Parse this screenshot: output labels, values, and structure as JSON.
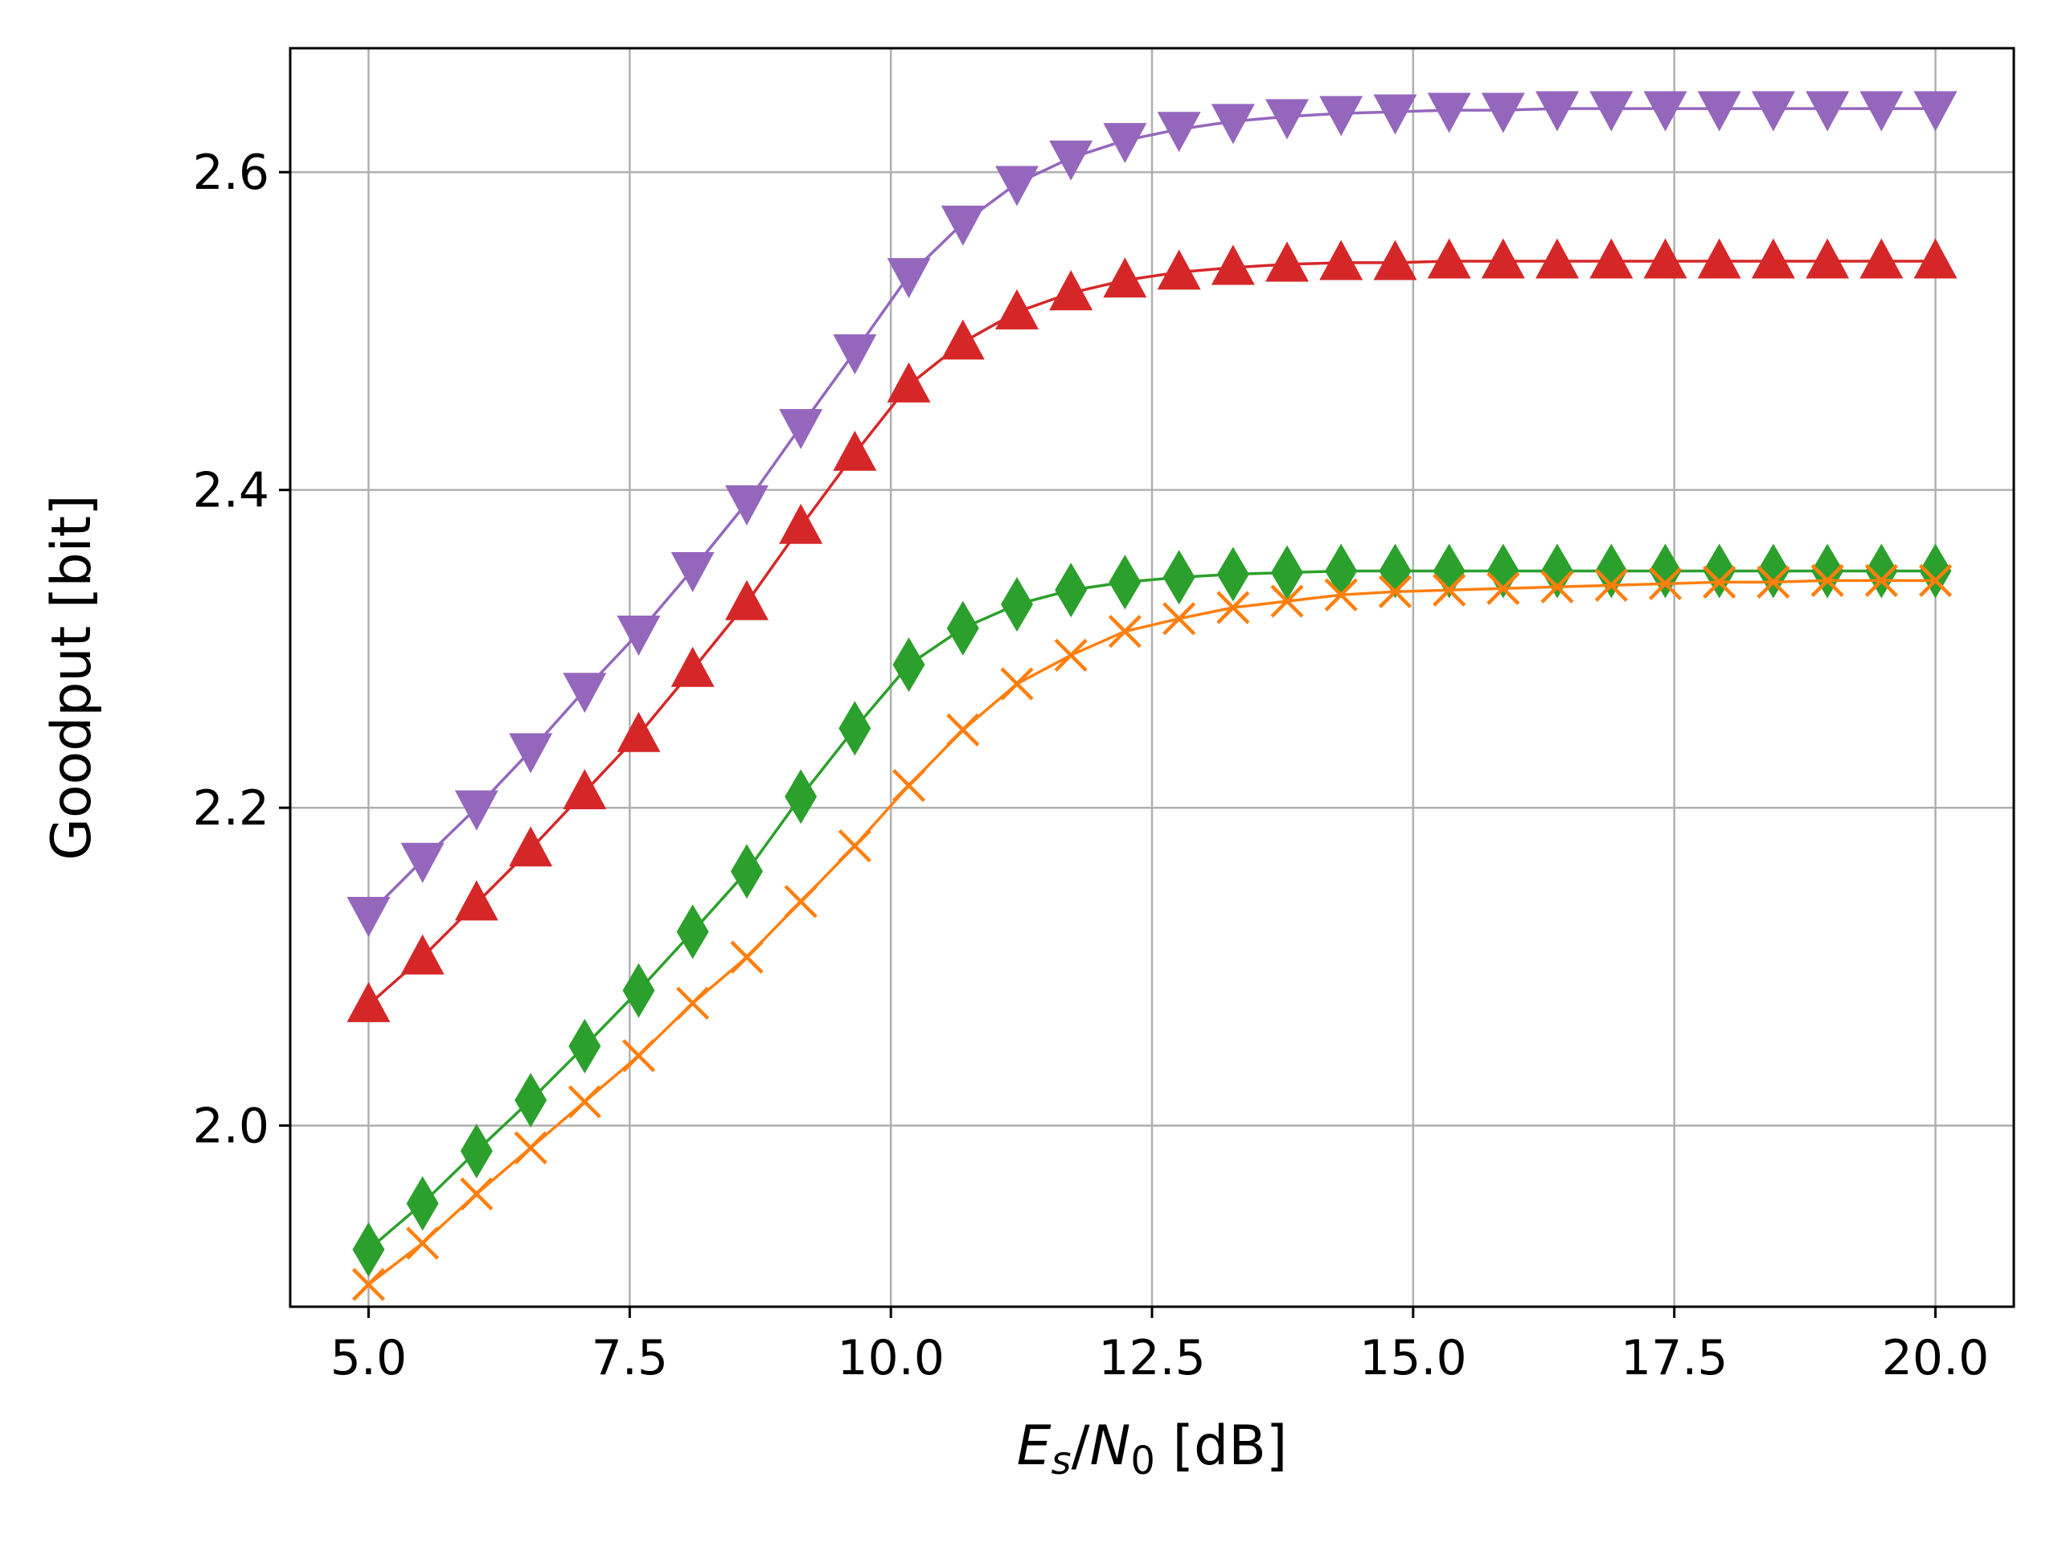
{
  "chart_data": {
    "type": "line",
    "title": "",
    "xlabel": {
      "E": "E",
      "s": "s",
      "slash": "/",
      "N": "N",
      "zero": "0",
      "unit": " [dB]"
    },
    "ylabel": "Goodput [bit]",
    "xlim": [
      4.25,
      20.75
    ],
    "ylim": [
      1.886,
      2.678
    ],
    "x_ticks": [
      5.0,
      7.5,
      10.0,
      12.5,
      15.0,
      17.5,
      20.0
    ],
    "x_tick_labels": [
      "5.0",
      "7.5",
      "10.0",
      "12.5",
      "15.0",
      "17.5",
      "20.0"
    ],
    "y_ticks": [
      2.0,
      2.2,
      2.4,
      2.6
    ],
    "y_tick_labels": [
      "2.0",
      "2.2",
      "2.4",
      "2.6"
    ],
    "grid": true,
    "x": [
      5.0,
      5.517,
      6.034,
      6.552,
      7.069,
      7.586,
      8.103,
      8.621,
      9.138,
      9.655,
      10.172,
      10.69,
      11.207,
      11.724,
      12.241,
      12.759,
      13.276,
      13.793,
      14.31,
      14.828,
      15.345,
      15.862,
      16.379,
      16.897,
      17.414,
      17.931,
      18.448,
      18.966,
      19.483,
      20.0
    ],
    "series": [
      {
        "name": "purple",
        "color": "#9467bd",
        "marker": "triangle-down",
        "values": [
          2.133,
          2.167,
          2.2,
          2.236,
          2.274,
          2.31,
          2.35,
          2.392,
          2.44,
          2.487,
          2.535,
          2.568,
          2.593,
          2.609,
          2.62,
          2.627,
          2.632,
          2.635,
          2.637,
          2.638,
          2.639,
          2.639,
          2.64,
          2.64,
          2.64,
          2.64,
          2.64,
          2.64,
          2.64,
          2.64
        ]
      },
      {
        "name": "red",
        "color": "#d62728",
        "marker": "triangle-up",
        "values": [
          2.076,
          2.106,
          2.14,
          2.174,
          2.21,
          2.246,
          2.287,
          2.329,
          2.377,
          2.423,
          2.466,
          2.493,
          2.512,
          2.524,
          2.532,
          2.537,
          2.54,
          2.542,
          2.543,
          2.543,
          2.544,
          2.544,
          2.544,
          2.544,
          2.544,
          2.544,
          2.544,
          2.544,
          2.544,
          2.544
        ]
      },
      {
        "name": "green",
        "color": "#2ca02c",
        "marker": "thin-diamond",
        "values": [
          1.922,
          1.951,
          1.984,
          2.016,
          2.05,
          2.085,
          2.122,
          2.16,
          2.207,
          2.25,
          2.29,
          2.313,
          2.328,
          2.337,
          2.342,
          2.345,
          2.347,
          2.348,
          2.349,
          2.349,
          2.349,
          2.349,
          2.349,
          2.349,
          2.349,
          2.349,
          2.349,
          2.349,
          2.349,
          2.349
        ]
      },
      {
        "name": "orange",
        "color": "#ff7f0e",
        "marker": "x",
        "values": [
          1.9,
          1.926,
          1.957,
          1.986,
          2.015,
          2.044,
          2.077,
          2.106,
          2.141,
          2.176,
          2.214,
          2.249,
          2.278,
          2.296,
          2.311,
          2.319,
          2.326,
          2.33,
          2.334,
          2.336,
          2.337,
          2.338,
          2.339,
          2.34,
          2.341,
          2.342,
          2.342,
          2.343,
          2.343,
          2.343
        ]
      }
    ]
  }
}
